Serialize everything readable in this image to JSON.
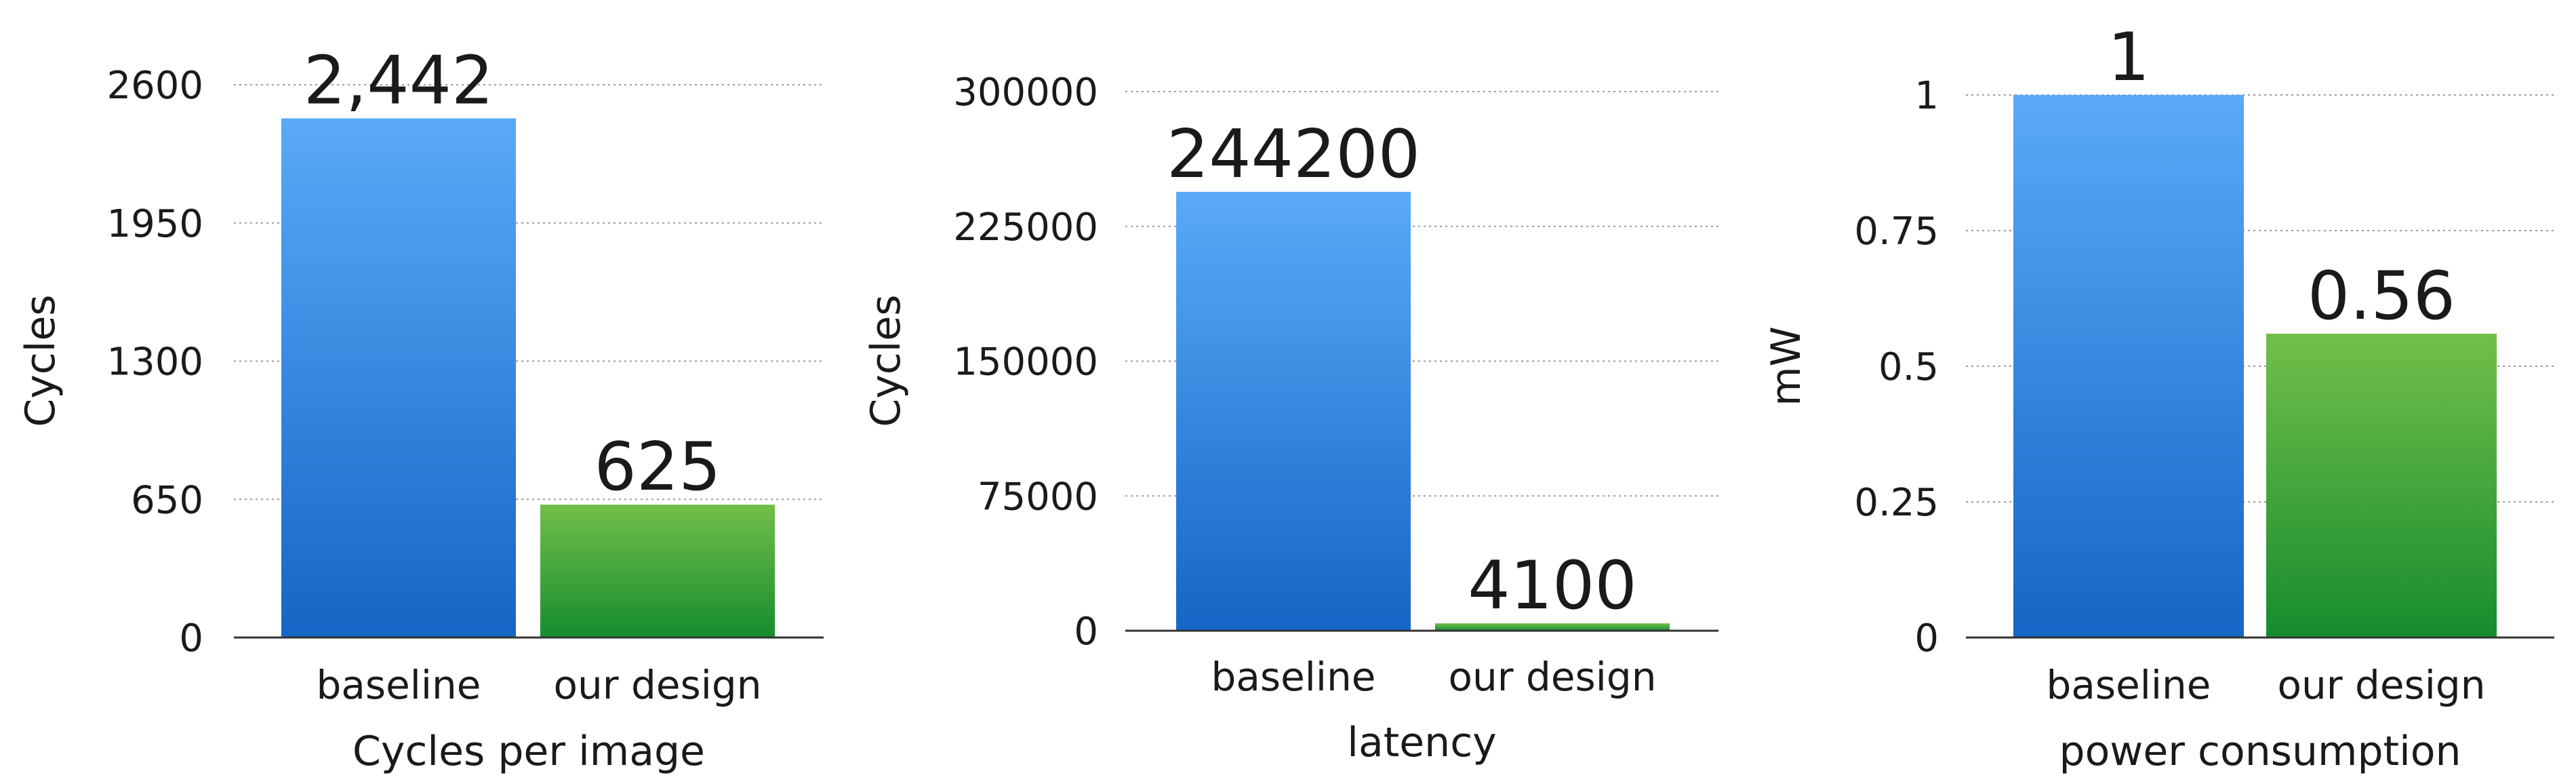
{
  "colors": {
    "baseline_top": "#5aaaf8",
    "baseline_bottom": "#1565c6",
    "design_top": "#72bf4a",
    "design_bottom": "#168c2e",
    "grid": "#9a9a9a",
    "axis": "#333333",
    "text": "#1a1a1a"
  },
  "chart_data": [
    {
      "type": "bar",
      "title": "",
      "xlabel": "Cycles per image",
      "ylabel": "Cycles",
      "categories": [
        "baseline",
        "our design"
      ],
      "values": [
        2442,
        625
      ],
      "data_labels": [
        "2,442",
        "625"
      ],
      "ylim": [
        0,
        2600
      ],
      "yticks": [
        0,
        650,
        1300,
        1950,
        2600
      ],
      "ytick_labels": [
        "0",
        "650",
        "1300",
        "1950",
        "2600"
      ],
      "grid": true
    },
    {
      "type": "bar",
      "title": "",
      "xlabel": "latency",
      "ylabel": "Cycles",
      "categories": [
        "baseline",
        "our design"
      ],
      "values": [
        244200,
        4100
      ],
      "data_labels": [
        "244200",
        "4100"
      ],
      "ylim": [
        0,
        300000
      ],
      "yticks": [
        0,
        75000,
        150000,
        225000,
        300000
      ],
      "ytick_labels": [
        "0",
        "75000",
        "150000",
        "225000",
        "300000"
      ],
      "grid": true
    },
    {
      "type": "bar",
      "title": "",
      "xlabel": "power consumption",
      "ylabel": "mW",
      "categories": [
        "baseline",
        "our design"
      ],
      "values": [
        1,
        0.56
      ],
      "data_labels": [
        "1",
        "0.56"
      ],
      "ylim": [
        0,
        1
      ],
      "yticks": [
        0,
        0.25,
        0.5,
        0.75,
        1
      ],
      "ytick_labels": [
        "0",
        "0.25",
        "0.5",
        "0.75",
        "1"
      ],
      "grid": true
    }
  ]
}
